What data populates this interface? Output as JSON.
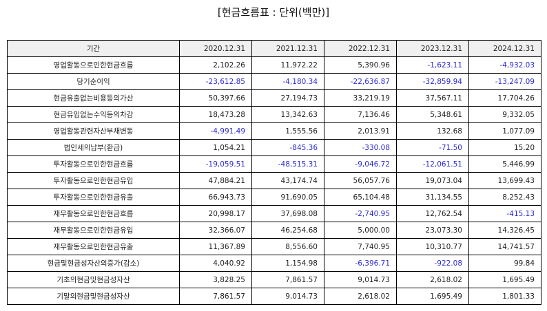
{
  "title": "[현금흐름표 : 단위(백만)]",
  "table": {
    "header_label": "기간",
    "periods": [
      "2020.12.31",
      "2021.12.31",
      "2022.12.31",
      "2023.12.31",
      "2024.12.31"
    ],
    "rows": [
      {
        "label": "영업활동으로인한현금흐름",
        "values": [
          "2,102.26",
          "11,972.22",
          "5,390.96",
          "-1,623.11",
          "-4,932.03"
        ]
      },
      {
        "label": "당기순이익",
        "values": [
          "-23,612.85",
          "-4,180.34",
          "-22,636.87",
          "-32,859.94",
          "-13,247.09"
        ]
      },
      {
        "label": "현금유출없는비용등의가산",
        "values": [
          "50,397.66",
          "27,194.73",
          "33,219.19",
          "37,567.11",
          "17,704.26"
        ]
      },
      {
        "label": "현금유입없는수익등의차감",
        "values": [
          "18,473.28",
          "13,342.63",
          "7,136.46",
          "5,348.61",
          "9,332.05"
        ]
      },
      {
        "label": "영업활동관련자산부채변동",
        "values": [
          "-4,991.49",
          "1,555.56",
          "2,013.91",
          "132.68",
          "1,077.09"
        ]
      },
      {
        "label": "법인세의납부(환급)",
        "values": [
          "1,054.21",
          "-845.36",
          "-330.08",
          "-71.50",
          "15.20"
        ]
      },
      {
        "label": "투자활동으로인한현금흐름",
        "values": [
          "-19,059.51",
          "-48,515.31",
          "-9,046.72",
          "-12,061.51",
          "5,446.99"
        ]
      },
      {
        "label": "투자활동으로인한현금유입",
        "values": [
          "47,884.21",
          "43,174.74",
          "56,057.76",
          "19,073.04",
          "13,699.43"
        ]
      },
      {
        "label": "투자활동으로인한현금유출",
        "values": [
          "66,943.73",
          "91,690.05",
          "65,104.48",
          "31,134.55",
          "8,252.43"
        ]
      },
      {
        "label": "재무활동으로인한현금흐름",
        "values": [
          "20,998.17",
          "37,698.08",
          "-2,740.95",
          "12,762.54",
          "-415.13"
        ]
      },
      {
        "label": "재무활동으로인한현금유입",
        "values": [
          "32,366.07",
          "46,254.68",
          "5,000.00",
          "23,073.30",
          "14,326.45"
        ]
      },
      {
        "label": "재무활동으로인한현금유출",
        "values": [
          "11,367.89",
          "8,556.60",
          "7,740.95",
          "10,310.77",
          "14,741.57"
        ]
      },
      {
        "label": "현금및현금성자산의증가(감소)",
        "values": [
          "4,040.92",
          "1,154.98",
          "-6,396.71",
          "-922.08",
          "99.84"
        ]
      },
      {
        "label": "기초의현금및현금성자산",
        "values": [
          "3,828.25",
          "7,861.57",
          "9,014.73",
          "2,618.02",
          "1,695.49"
        ]
      },
      {
        "label": "기말의현금및현금성자산",
        "values": [
          "7,861.57",
          "9,014.73",
          "2,618.02",
          "1,695.49",
          "1,801.33"
        ]
      }
    ]
  },
  "colors": {
    "negative_value": "#2b2bd6",
    "header_background": "#f0f0f0",
    "border": "#000000"
  }
}
